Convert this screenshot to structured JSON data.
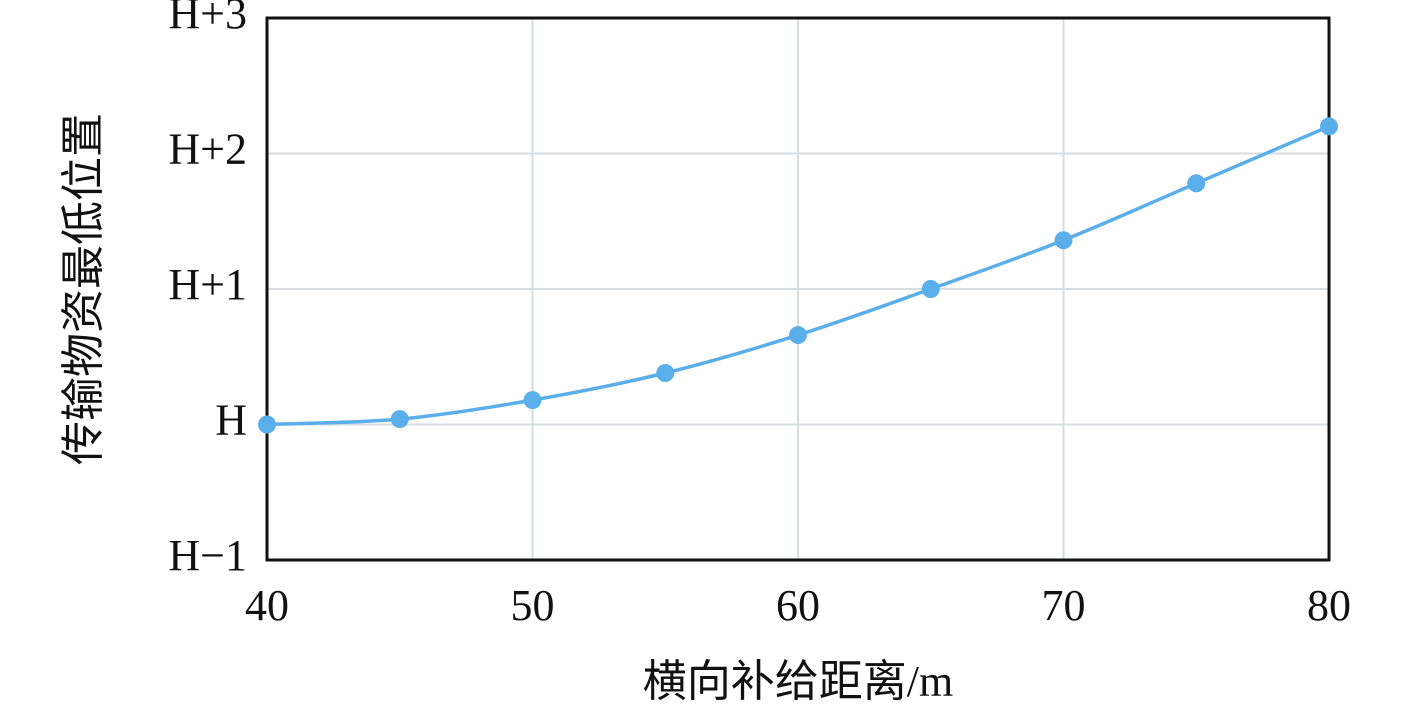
{
  "chart_data": {
    "type": "line",
    "x_label": "横向补给距离/m",
    "y_label": "传输物资最低位置",
    "x": [
      40,
      45,
      50,
      55,
      60,
      65,
      70,
      75,
      80
    ],
    "series": [
      {
        "color": "#5aaeea",
        "values": [
          0,
          0.04,
          0.18,
          0.38,
          0.66,
          1.0,
          1.36,
          1.78,
          2.2
        ]
      }
    ],
    "xlim": [
      40,
      80
    ],
    "xticks": [
      40,
      50,
      60,
      70,
      80
    ],
    "ylim": [
      -1,
      3
    ],
    "yticks": [
      {
        "value": -1,
        "label": "H−1"
      },
      {
        "value": 0,
        "label": "H"
      },
      {
        "value": 1,
        "label": "H+1"
      },
      {
        "value": 2,
        "label": "H+2"
      },
      {
        "value": 3,
        "label": "H+3"
      }
    ],
    "grid": true
  }
}
